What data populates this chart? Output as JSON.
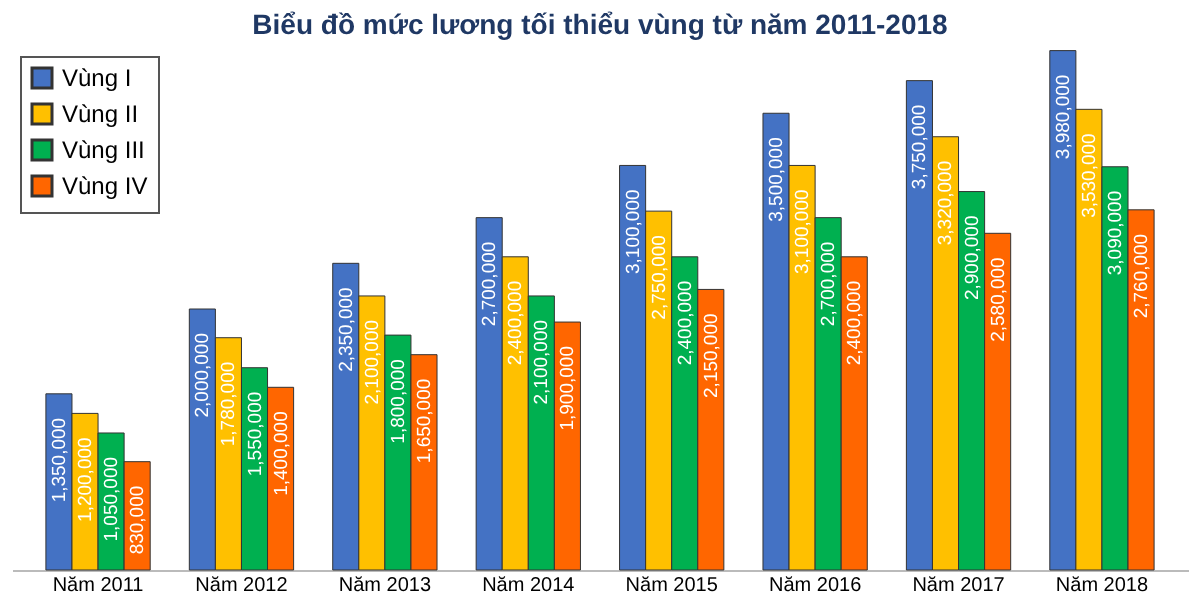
{
  "chart_data": {
    "type": "bar",
    "title": "Biểu đồ mức lương tối thiểu vùng từ năm 2011-2018",
    "categories": [
      "Năm 2011",
      "Năm 2012",
      "Năm 2013",
      "Năm 2014",
      "Năm 2015",
      "Năm 2016",
      "Năm 2017",
      "Năm 2018"
    ],
    "series": [
      {
        "name": "Vùng I",
        "color": "#4472c4",
        "values": [
          1350000,
          2000000,
          2350000,
          2700000,
          3100000,
          3500000,
          3750000,
          3980000
        ],
        "value_labels": [
          "1,350,000",
          "2,000,000",
          "2,350,000",
          "2,700,000",
          "3,100,000",
          "3,500,000",
          "3,750,000",
          "3,980,000"
        ]
      },
      {
        "name": "Vùng II",
        "color": "#ffc000",
        "values": [
          1200000,
          1780000,
          2100000,
          2400000,
          2750000,
          3100000,
          3320000,
          3530000
        ],
        "value_labels": [
          "1,200,000",
          "1,780,000",
          "2,100,000",
          "2,400,000",
          "2,750,000",
          "3,100,000",
          "3,320,000",
          "3,530,000"
        ]
      },
      {
        "name": "Vùng III",
        "color": "#00b050",
        "values": [
          1050000,
          1550000,
          1800000,
          2100000,
          2400000,
          2700000,
          2900000,
          3090000
        ],
        "value_labels": [
          "1,050,000",
          "1,550,000",
          "1,800,000",
          "2,100,000",
          "2,400,000",
          "2,700,000",
          "2,900,000",
          "3,090,000"
        ]
      },
      {
        "name": "Vùng IV",
        "color": "#ff6600",
        "values": [
          830000,
          1400000,
          1650000,
          1900000,
          2150000,
          2400000,
          2580000,
          2760000
        ],
        "value_labels": [
          "830,000",
          "1,400,000",
          "1,650,000",
          "1,900,000",
          "2,150,000",
          "2,400,000",
          "2,580,000",
          "2,760,000"
        ]
      }
    ],
    "legend": "top left",
    "grid": false
  }
}
